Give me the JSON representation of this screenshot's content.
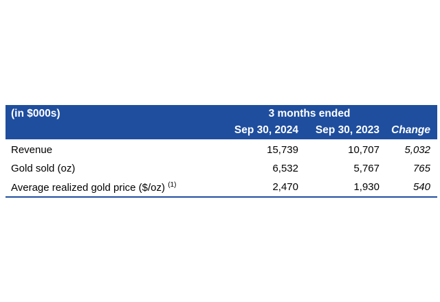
{
  "table": {
    "unit_label": "(in $000s)",
    "period_label": "3 months ended",
    "columns": [
      "Sep 30, 2024",
      "Sep 30, 2023",
      "Change"
    ],
    "rows": [
      {
        "label": "Revenue",
        "footnote": "",
        "values": [
          "15,739",
          "10,707",
          "5,032"
        ]
      },
      {
        "label": "Gold sold (oz)",
        "footnote": "",
        "values": [
          "6,532",
          "5,767",
          "765"
        ]
      },
      {
        "label": "Average realized gold price ($/oz)",
        "footnote": "(1)",
        "values": [
          "2,470",
          "1,930",
          "540"
        ]
      }
    ],
    "colors": {
      "header_bg": "#1f4e9e",
      "header_text": "#ffffff"
    }
  }
}
